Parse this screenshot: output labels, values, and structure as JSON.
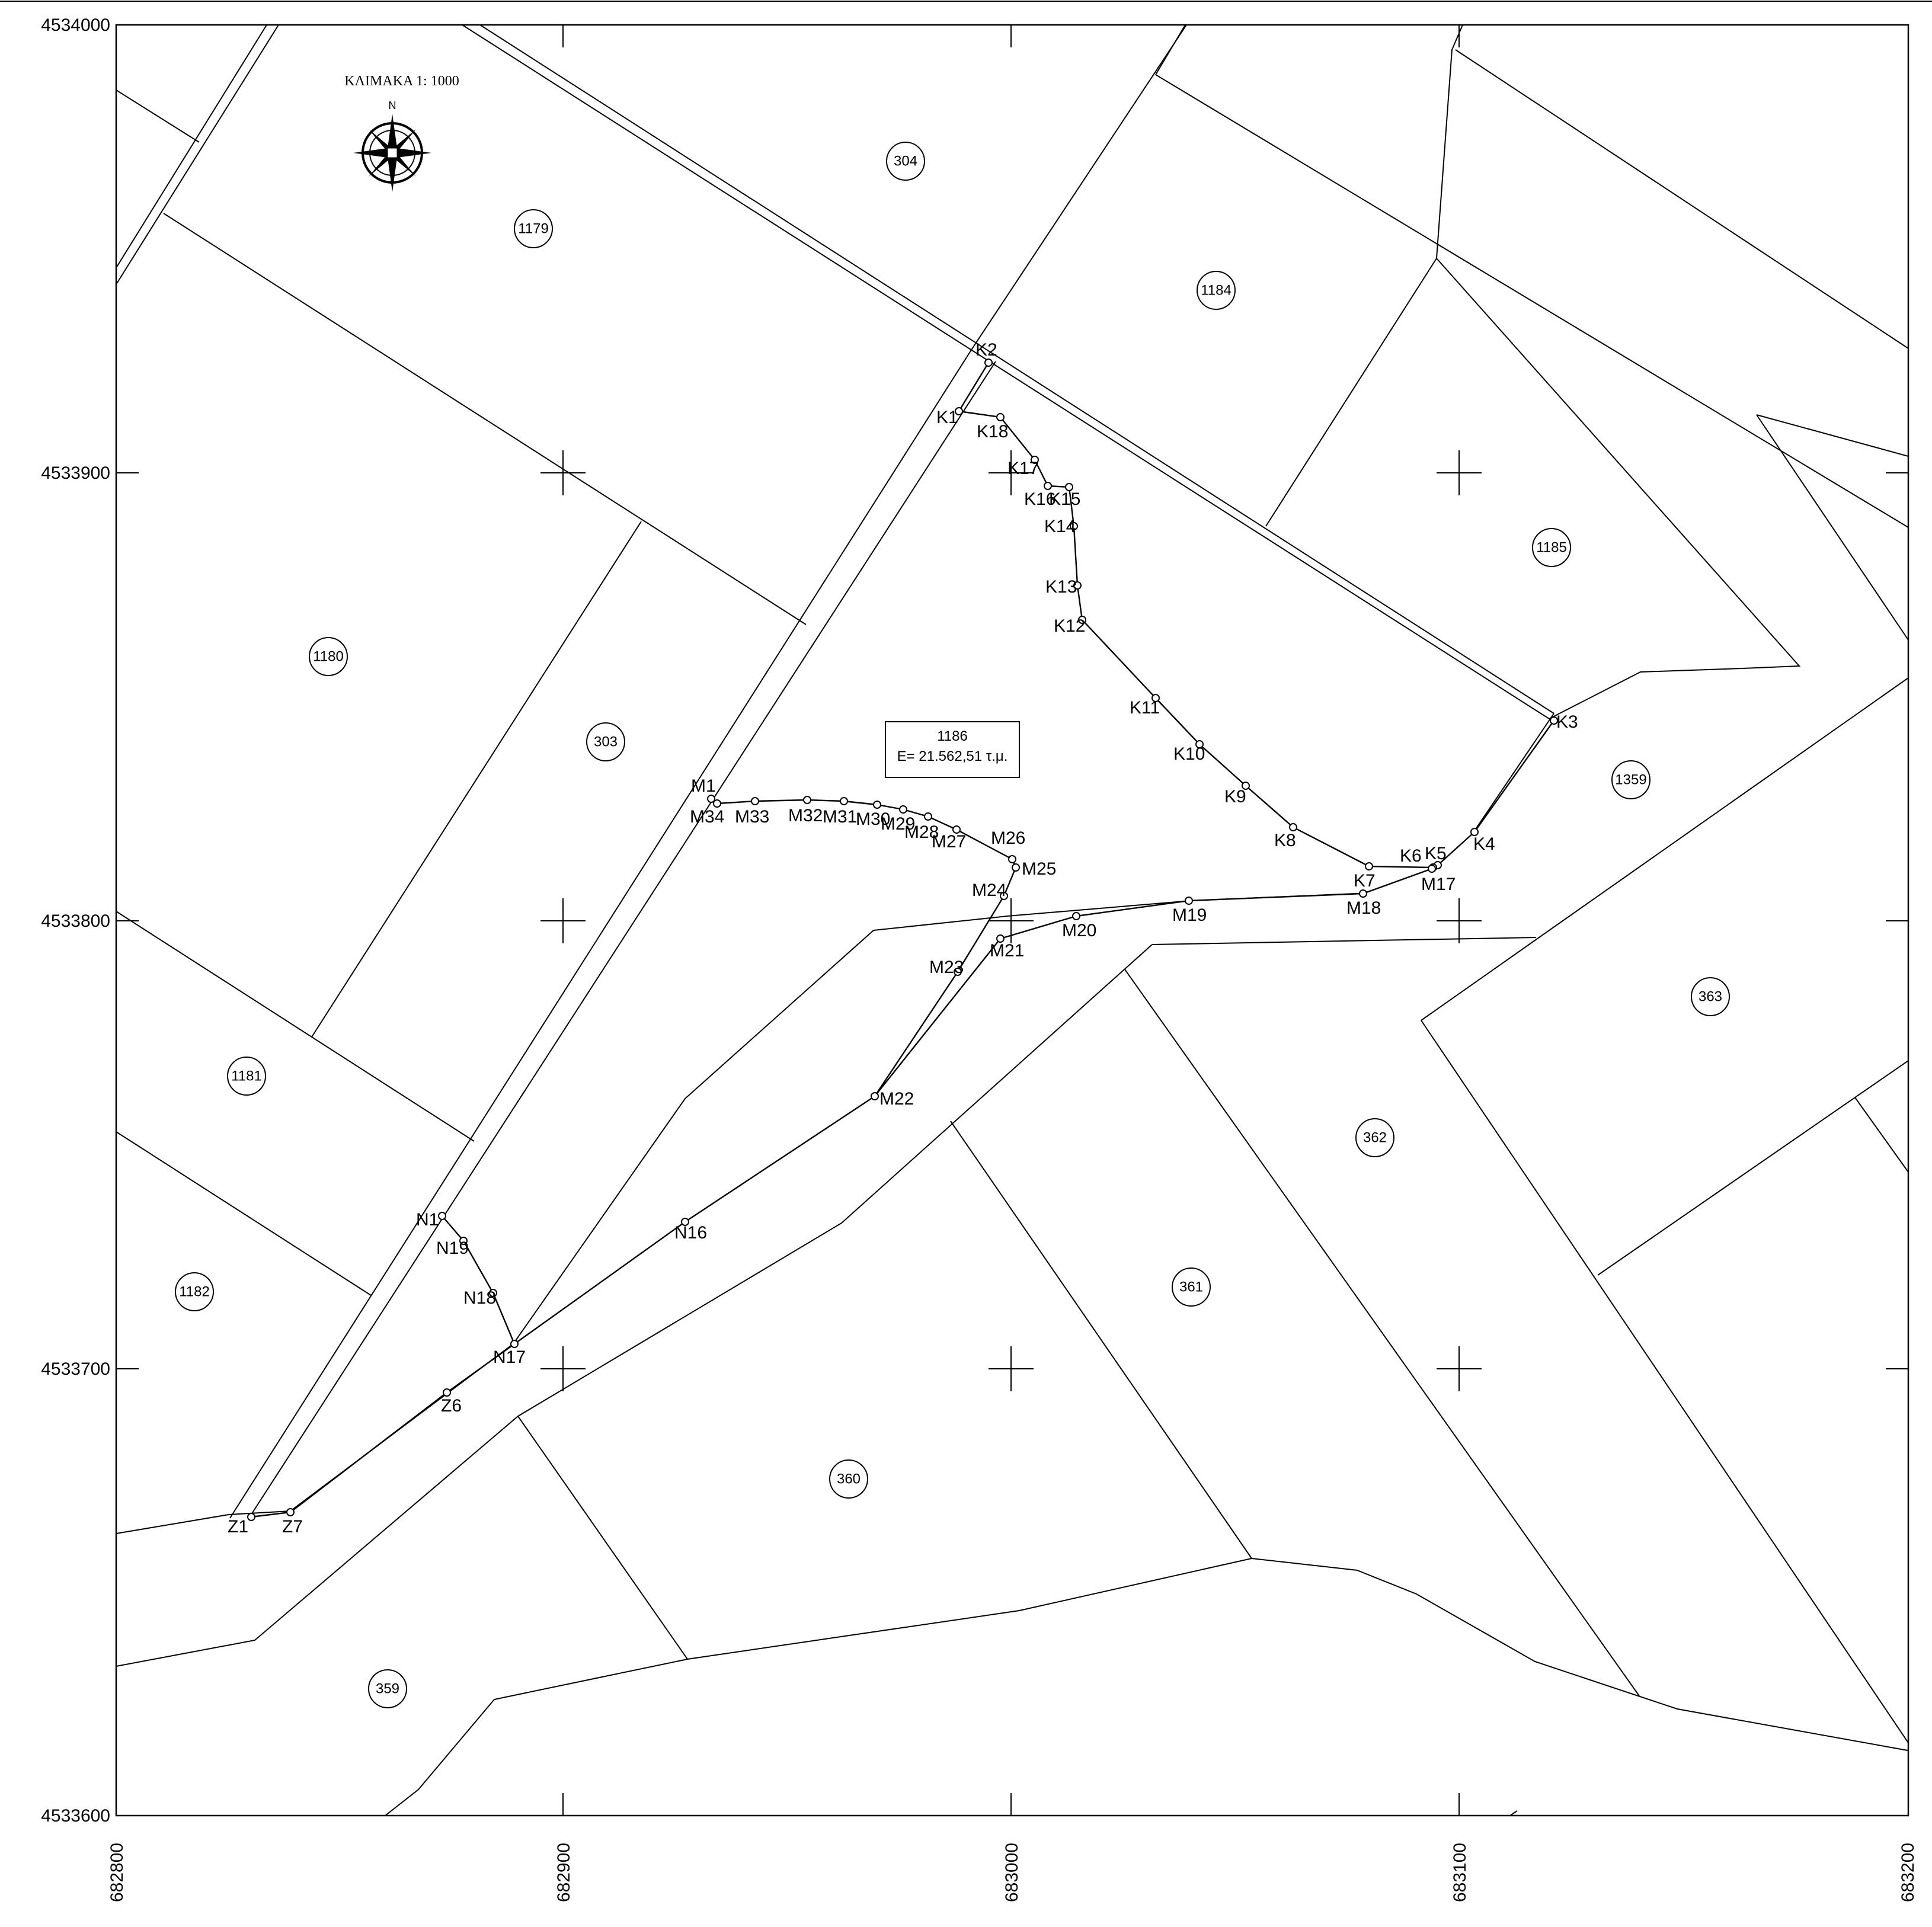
{
  "scale_label": "ΚΛΙΜΑΚΑ 1: 1000",
  "north_label": "N",
  "axes": {
    "y_ticks": [
      "4534000",
      "4533900",
      "4533800",
      "4533700",
      "4533600"
    ],
    "x_ticks": [
      "682800",
      "682900",
      "683000",
      "683100",
      "683200"
    ]
  },
  "main_parcel": {
    "number": "1186",
    "area": "E= 21.562,51 τ.μ."
  },
  "parcels": [
    "304",
    "1179",
    "1184",
    "1185",
    "1180",
    "303",
    "1359",
    "363",
    "1181",
    "362",
    "1182",
    "361",
    "360",
    "359"
  ],
  "vertices": [
    "K1",
    "K2",
    "K3",
    "K4",
    "K5",
    "K6",
    "K7",
    "K8",
    "K9",
    "K10",
    "K11",
    "K12",
    "K13",
    "K14",
    "K15",
    "K16",
    "K17",
    "K18",
    "M1",
    "M17",
    "M18",
    "M19",
    "M20",
    "M21",
    "M22",
    "M23",
    "M24",
    "M25",
    "M26",
    "M27",
    "M28",
    "M29",
    "M30",
    "M31",
    "M32",
    "M33",
    "M34",
    "N1",
    "N16",
    "N17",
    "N18",
    "N19",
    "Z1",
    "Z6",
    "Z7"
  ]
}
